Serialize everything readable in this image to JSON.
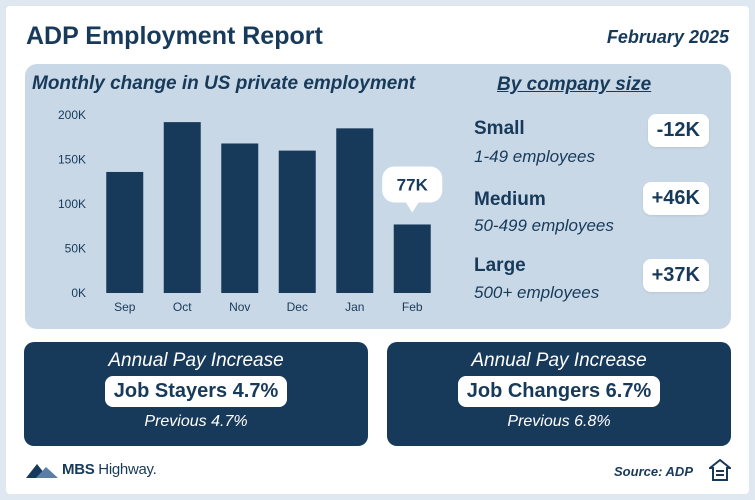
{
  "header": {
    "title": "ADP Employment Report",
    "date": "February 2025"
  },
  "chart_data": {
    "type": "bar",
    "title": "Monthly change in US private employment",
    "categories": [
      "Sep",
      "Oct",
      "Nov",
      "Dec",
      "Jan",
      "Feb"
    ],
    "values": [
      136000,
      192000,
      168000,
      160000,
      185000,
      77000
    ],
    "ylim": [
      0,
      200000
    ],
    "yticks": [
      "0K",
      "50K",
      "100K",
      "150K",
      "200K"
    ],
    "annotation": {
      "category": "Feb",
      "label": "77K"
    },
    "bar_color": "#183a5a",
    "grid": false
  },
  "company_size": {
    "heading": "By company size",
    "segments": [
      {
        "name": "Small",
        "sub": "1-49 employees",
        "value": "-12K"
      },
      {
        "name": "Medium",
        "sub": "50-499 employees",
        "value": "+46K"
      },
      {
        "name": "Large",
        "sub": "500+ employees",
        "value": "+37K"
      }
    ]
  },
  "pay": [
    {
      "heading": "Annual Pay Increase",
      "label": "Job Stayers 4.7%",
      "previous": "Previous 4.7%"
    },
    {
      "heading": "Annual Pay Increase",
      "label": "Job Changers 6.7%",
      "previous": "Previous 6.8%"
    }
  ],
  "footer": {
    "brand": "MBS",
    "brand_rest": " Highway.",
    "source": "Source: ADP"
  },
  "colors": {
    "navy": "#183a5a",
    "panel": "#c8d8e6"
  }
}
